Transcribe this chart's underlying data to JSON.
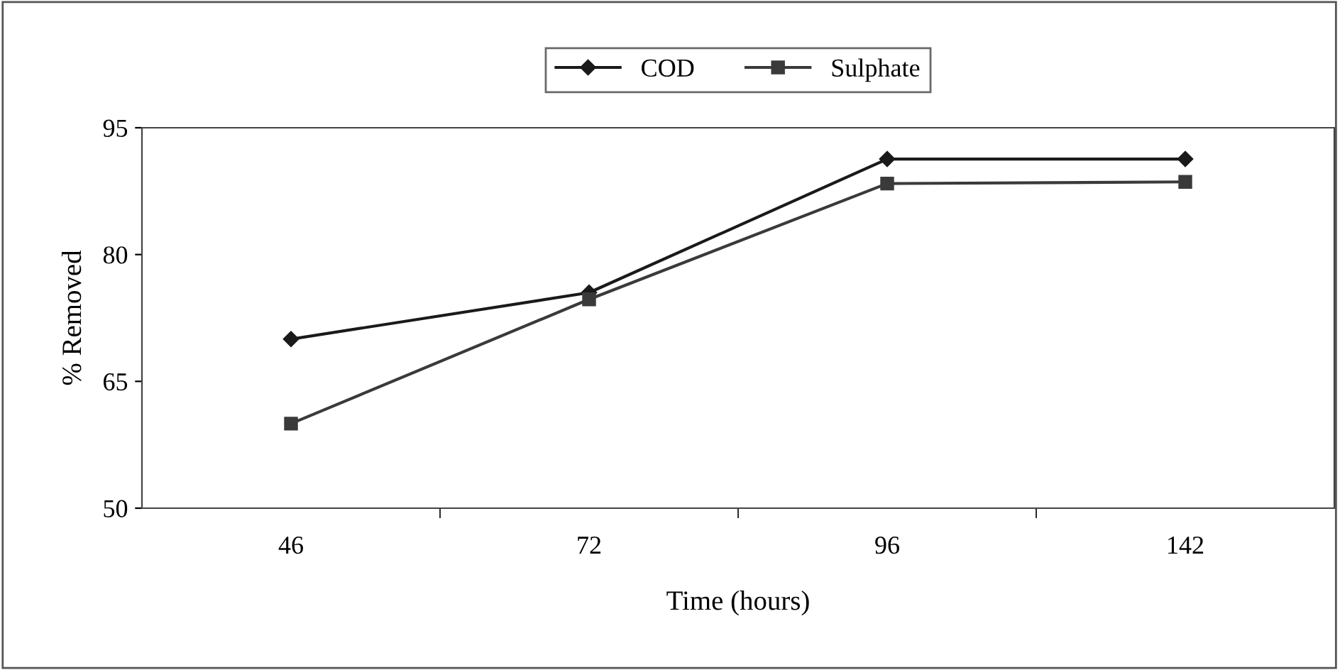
{
  "chart_data": {
    "type": "line",
    "xlabel": "Time (hours)",
    "ylabel": "% Removed",
    "categories": [
      "46",
      "72",
      "96",
      "142"
    ],
    "series": [
      {
        "name": "COD",
        "color": "#1a1a1a",
        "marker": "diamond",
        "values": [
          70,
          75.5,
          91.3,
          91.3
        ]
      },
      {
        "name": "Sulphate",
        "color": "#3a3a3a",
        "marker": "square",
        "values": [
          60,
          74.7,
          88.4,
          88.6
        ]
      }
    ],
    "ylim": [
      50,
      95
    ],
    "yticks": [
      50,
      65,
      80,
      95
    ],
    "grid": false,
    "legend": "top",
    "line_style": "solid"
  }
}
